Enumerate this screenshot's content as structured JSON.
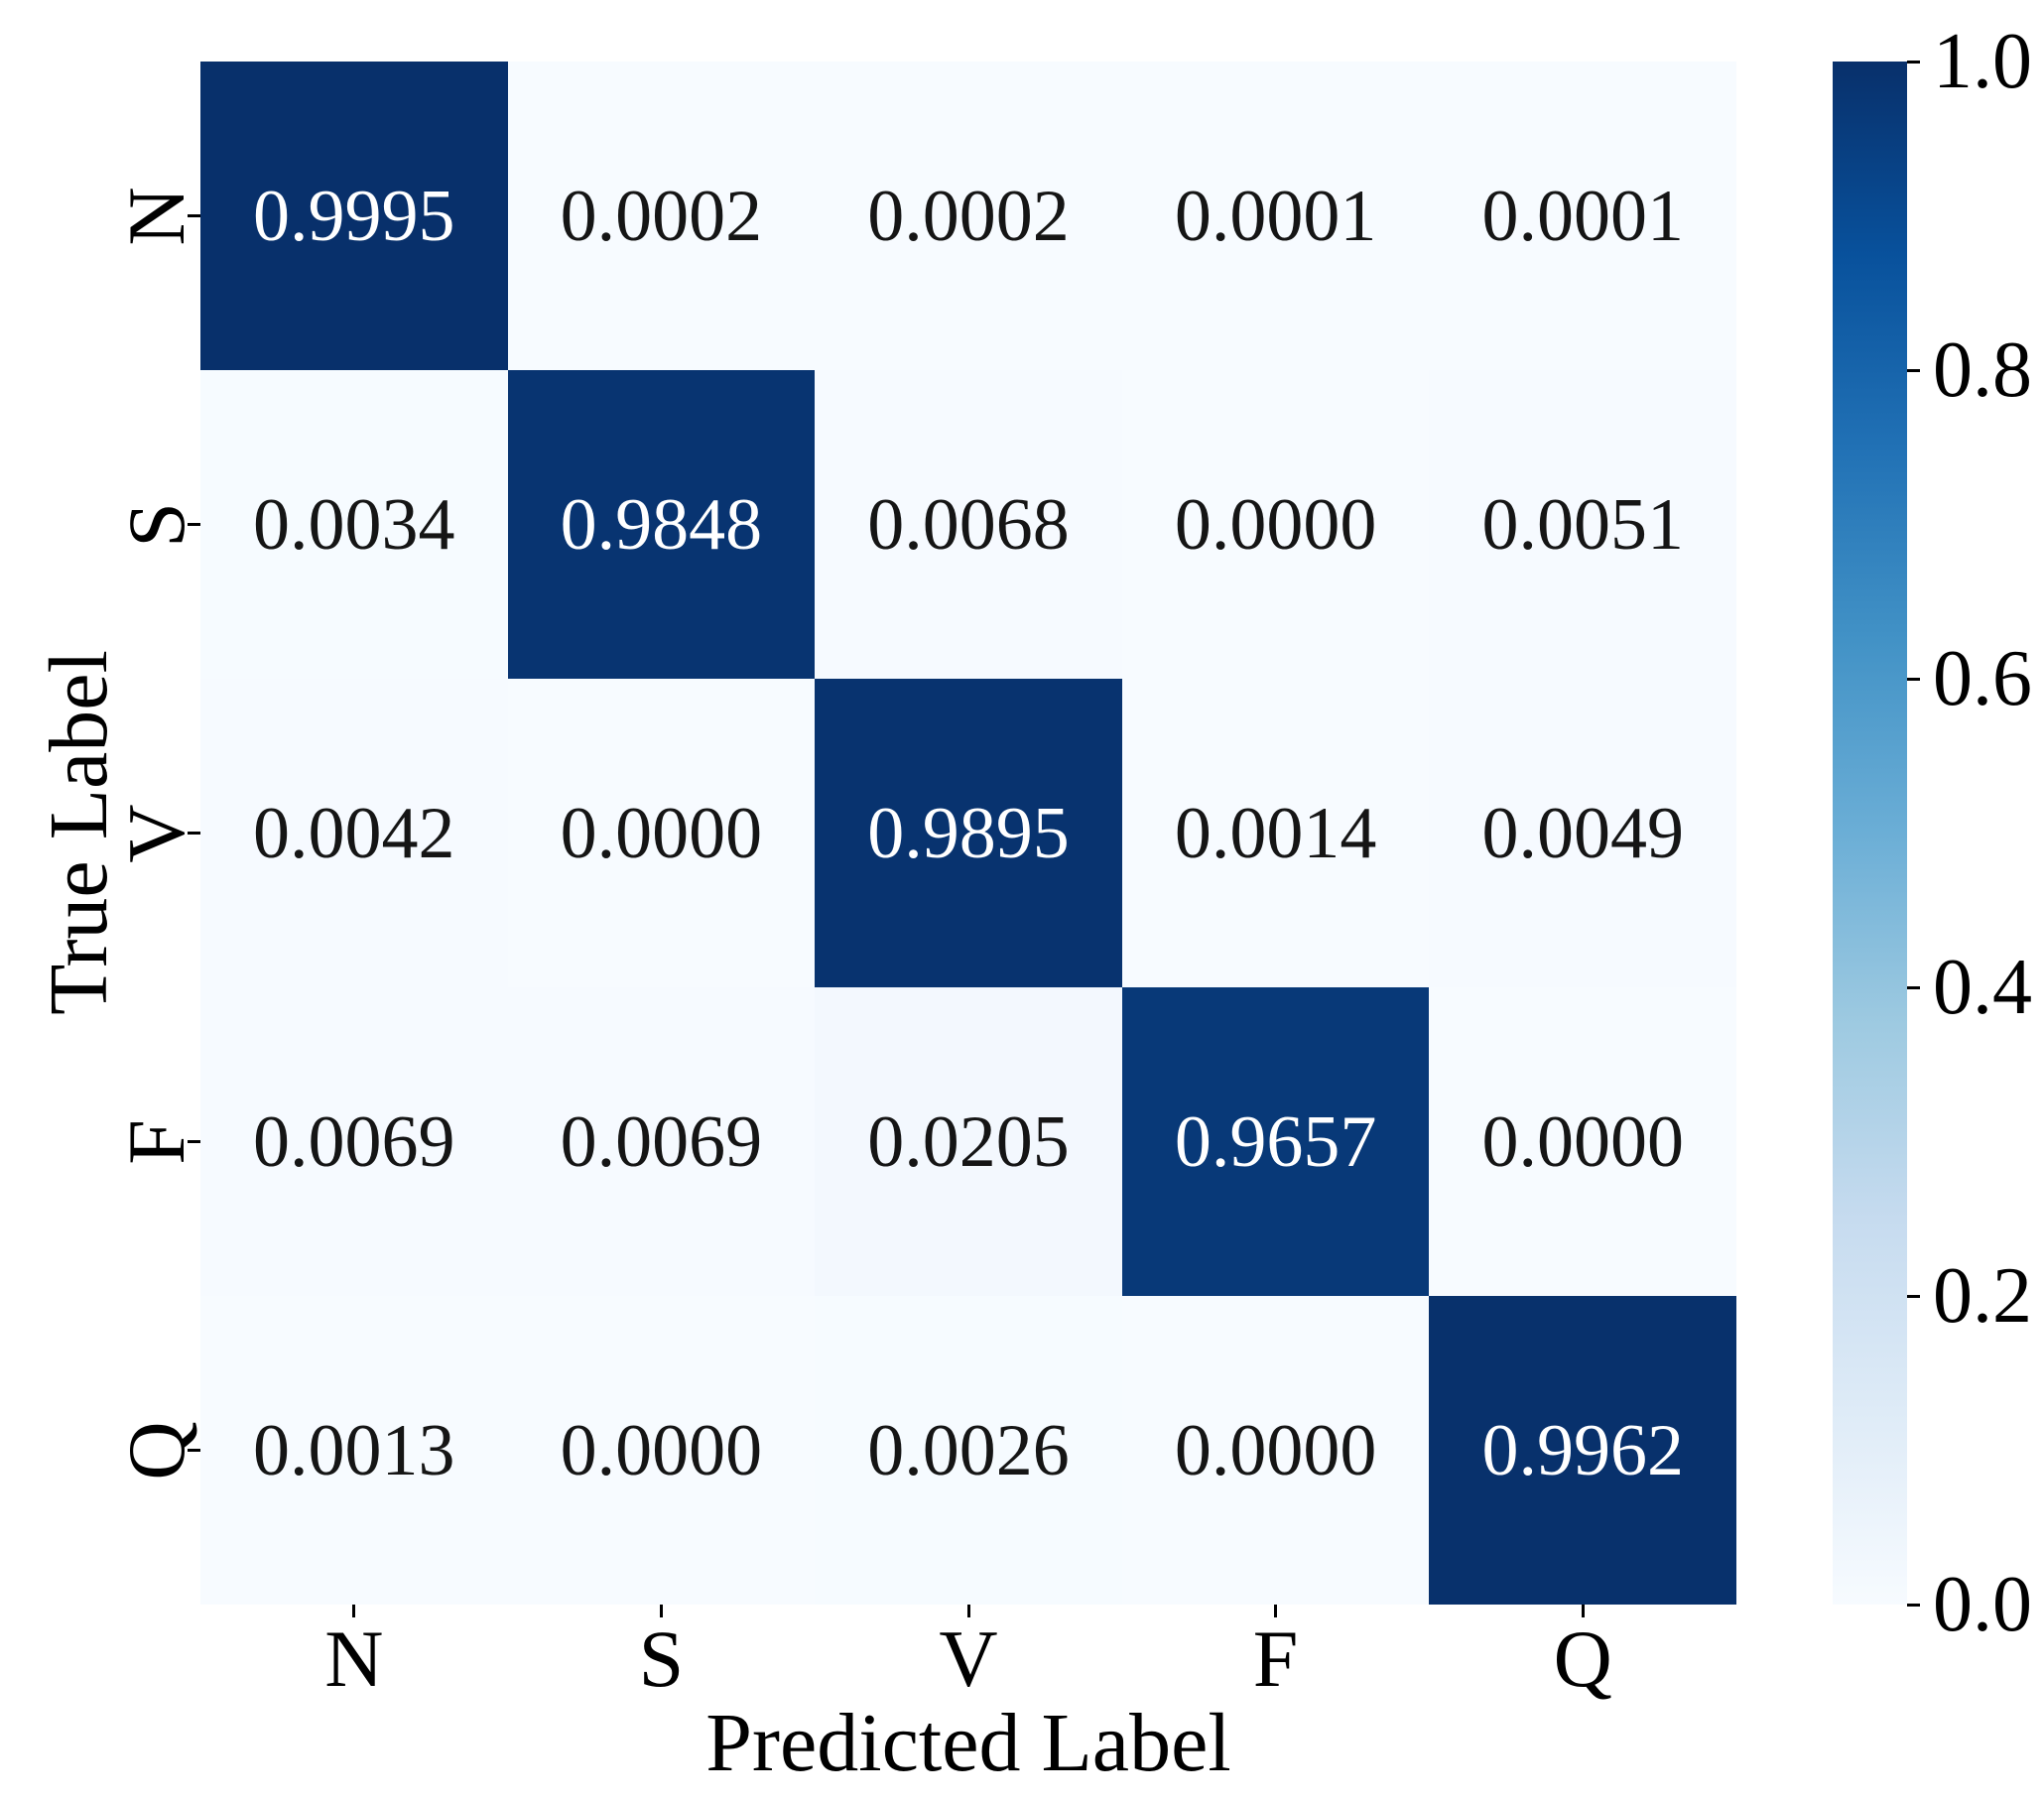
{
  "figure": {
    "background": "#ffffff"
  },
  "chart_data": {
    "type": "heatmap",
    "title": "",
    "xlabel": "Predicted Label",
    "ylabel": "True Label",
    "x_tick_labels": [
      "N",
      "S",
      "V",
      "F",
      "Q"
    ],
    "y_tick_labels": [
      "N",
      "S",
      "V",
      "F",
      "Q"
    ],
    "rows": [
      {
        "label": "N",
        "values": [
          0.9995,
          0.0002,
          0.0002,
          0.0001,
          0.0001
        ],
        "display": [
          "0.9995",
          "0.0002",
          "0.0002",
          "0.0001",
          "0.0001"
        ]
      },
      {
        "label": "S",
        "values": [
          0.0034,
          0.9848,
          0.0068,
          0.0,
          0.0051
        ],
        "display": [
          "0.0034",
          "0.9848",
          "0.0068",
          "0.0000",
          "0.0051"
        ]
      },
      {
        "label": "V",
        "values": [
          0.0042,
          0.0,
          0.9895,
          0.0014,
          0.0049
        ],
        "display": [
          "0.0042",
          "0.0000",
          "0.9895",
          "0.0014",
          "0.0049"
        ]
      },
      {
        "label": "F",
        "values": [
          0.0069,
          0.0069,
          0.0205,
          0.9657,
          0.0
        ],
        "display": [
          "0.0069",
          "0.0069",
          "0.0205",
          "0.9657",
          "0.0000"
        ]
      },
      {
        "label": "Q",
        "values": [
          0.0013,
          0.0,
          0.0026,
          0.0,
          0.9962
        ],
        "display": [
          "0.0013",
          "0.0000",
          "0.0026",
          "0.0000",
          "0.9962"
        ]
      }
    ],
    "value_range": [
      0.0,
      1.0
    ],
    "grid": false,
    "legend_position": "right-colorbar",
    "colormap": {
      "name": "Blues",
      "anchors": [
        "#f7fbff",
        "#deebf7",
        "#c6dbef",
        "#9ecae1",
        "#6baed6",
        "#4292c6",
        "#2171b5",
        "#08519c",
        "#08306b"
      ]
    },
    "colorbar_tick_labels": [
      "1.0",
      "0.8",
      "0.6",
      "0.4",
      "0.2",
      "0.0"
    ],
    "colorbar_tick_values": [
      1.0,
      0.8,
      0.6,
      0.4,
      0.2,
      0.0
    ],
    "text_colors": {
      "dark_cell": "#ffffff",
      "light_cell": "#151515"
    }
  }
}
